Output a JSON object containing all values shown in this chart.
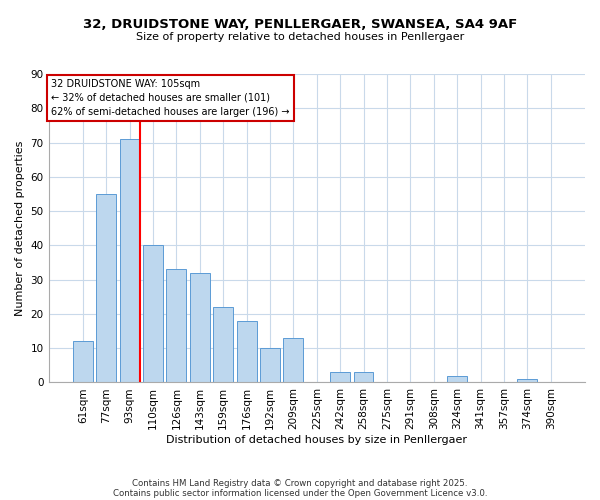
{
  "title": "32, DRUIDSTONE WAY, PENLLERGAER, SWANSEA, SA4 9AF",
  "subtitle": "Size of property relative to detached houses in Penllergaer",
  "xlabel": "Distribution of detached houses by size in Penllergaer",
  "ylabel": "Number of detached properties",
  "bin_labels": [
    "61sqm",
    "77sqm",
    "93sqm",
    "110sqm",
    "126sqm",
    "143sqm",
    "159sqm",
    "176sqm",
    "192sqm",
    "209sqm",
    "225sqm",
    "242sqm",
    "258sqm",
    "275sqm",
    "291sqm",
    "308sqm",
    "324sqm",
    "341sqm",
    "357sqm",
    "374sqm",
    "390sqm"
  ],
  "bar_values": [
    12,
    55,
    71,
    40,
    33,
    32,
    22,
    18,
    10,
    13,
    0,
    3,
    3,
    0,
    0,
    0,
    2,
    0,
    0,
    1,
    0
  ],
  "bar_color": "#bdd7ee",
  "bar_edge_color": "#5b9bd5",
  "vline_color": "red",
  "ylim": [
    0,
    90
  ],
  "yticks": [
    0,
    10,
    20,
    30,
    40,
    50,
    60,
    70,
    80,
    90
  ],
  "annotation_title": "32 DRUIDSTONE WAY: 105sqm",
  "annotation_line1": "← 32% of detached houses are smaller (101)",
  "annotation_line2": "62% of semi-detached houses are larger (196) →",
  "footer1": "Contains HM Land Registry data © Crown copyright and database right 2025.",
  "footer2": "Contains public sector information licensed under the Open Government Licence v3.0.",
  "background_color": "#ffffff",
  "grid_color": "#c9d9ea"
}
